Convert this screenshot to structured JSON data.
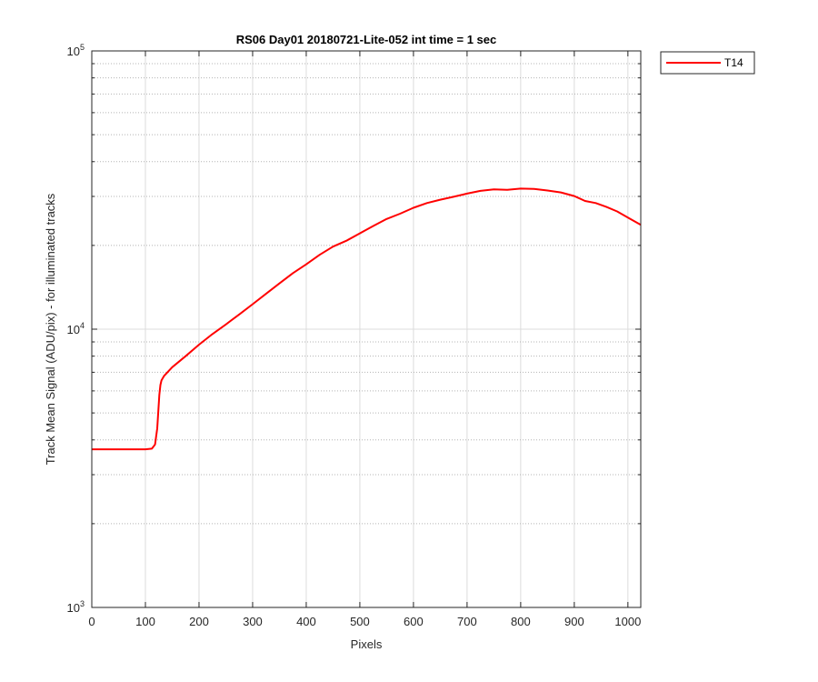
{
  "chart_data": {
    "type": "line",
    "title": "RS06 Day01 20180721-Lite-052 int time = 1 sec",
    "xlabel": "Pixels",
    "ylabel": "Track Mean Signal (ADU/pix) - for illuminated tracks",
    "xlim": [
      0,
      1024
    ],
    "ylim": [
      1000,
      100000
    ],
    "yscale": "log",
    "grid": true,
    "minor_grid": true,
    "legend_position": "outside-top-right",
    "x_ticks": [
      0,
      100,
      200,
      300,
      400,
      500,
      600,
      700,
      800,
      900,
      1000
    ],
    "x_tick_labels": [
      "0",
      "100",
      "200",
      "300",
      "400",
      "500",
      "600",
      "700",
      "800",
      "900",
      "1000"
    ],
    "y_ticks": [
      {
        "value": 1000,
        "base": "10",
        "exp": "3"
      },
      {
        "value": 10000,
        "base": "10",
        "exp": "4"
      },
      {
        "value": 100000,
        "base": "10",
        "exp": "5"
      }
    ],
    "series": [
      {
        "name": "T14",
        "color": "#ff0000",
        "x": [
          0,
          50,
          100,
          112,
          118,
          122,
          126,
          128,
          130,
          135,
          150,
          175,
          200,
          225,
          250,
          275,
          300,
          325,
          350,
          375,
          400,
          425,
          450,
          475,
          500,
          525,
          550,
          575,
          600,
          625,
          650,
          675,
          700,
          725,
          750,
          775,
          800,
          825,
          850,
          875,
          900,
          920,
          940,
          960,
          980,
          1000,
          1024
        ],
        "y": [
          3700,
          3700,
          3700,
          3720,
          3850,
          4400,
          5800,
          6300,
          6550,
          6800,
          7300,
          8000,
          8800,
          9600,
          10400,
          11300,
          12300,
          13400,
          14600,
          15900,
          17100,
          18500,
          19800,
          20800,
          22100,
          23500,
          24900,
          26000,
          27300,
          28400,
          29200,
          29900,
          30700,
          31400,
          31800,
          31700,
          32000,
          31900,
          31500,
          31000,
          30100,
          28900,
          28400,
          27500,
          26500,
          25200,
          23700
        ]
      }
    ]
  }
}
